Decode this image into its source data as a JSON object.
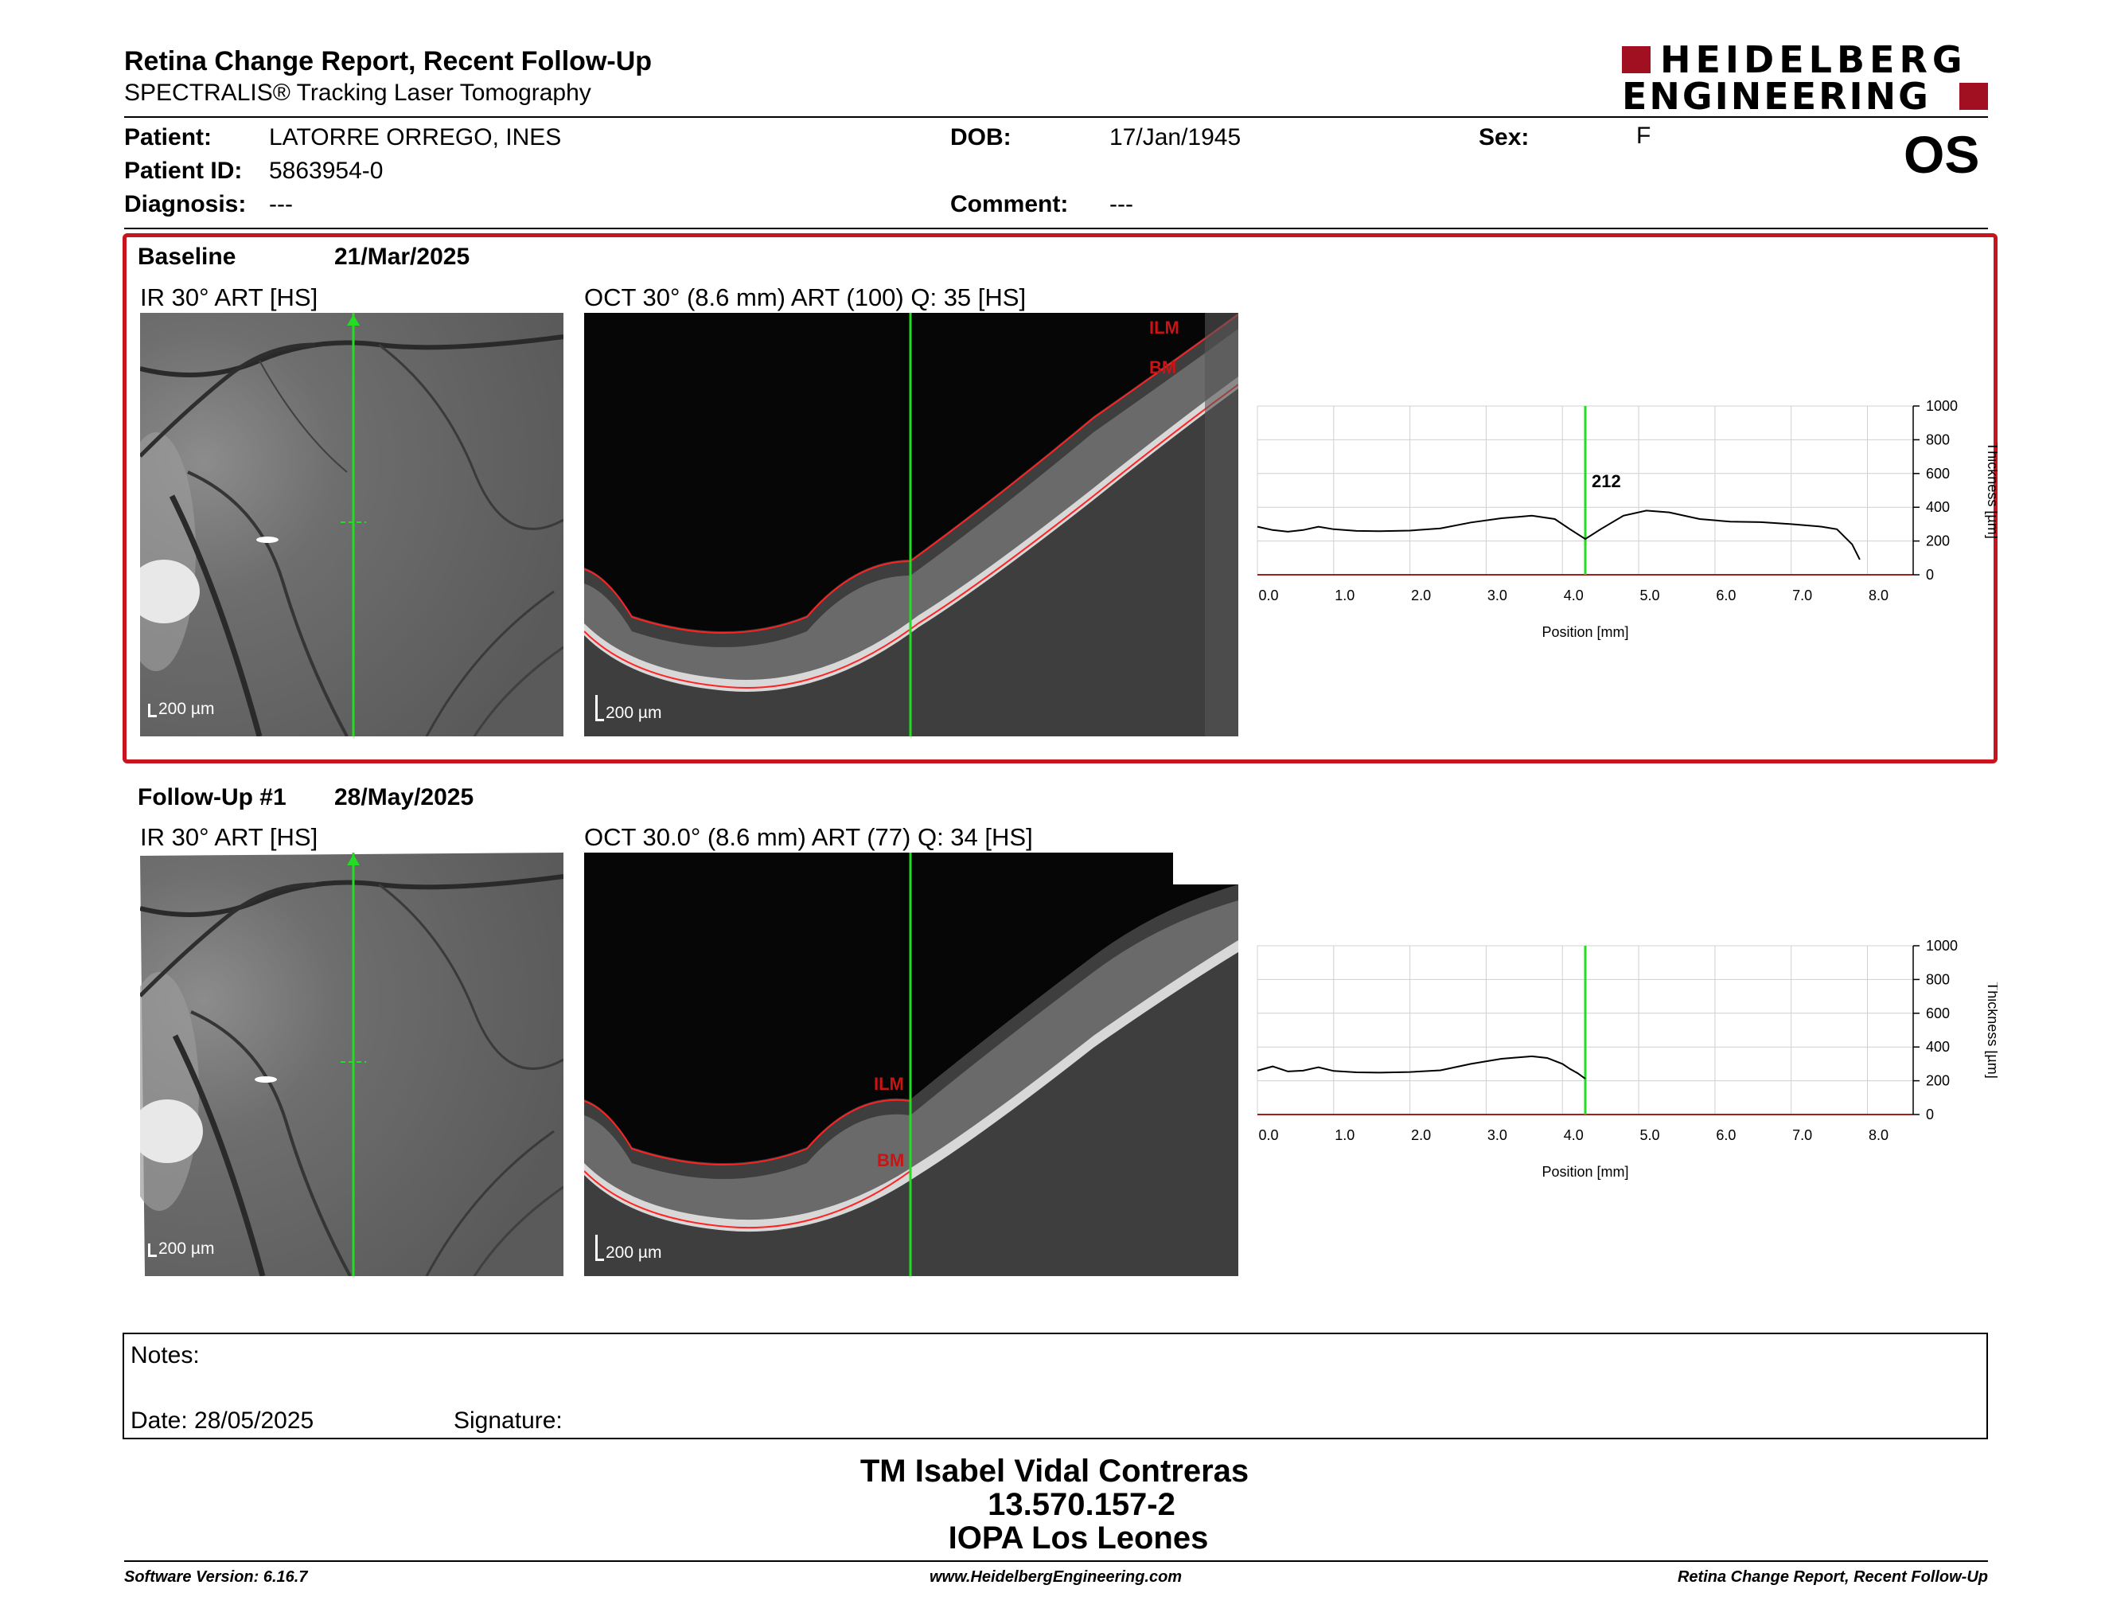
{
  "header": {
    "title": "Retina Change Report, Recent Follow-Up",
    "subtitle": "SPECTRALIS® Tracking Laser Tomography",
    "brand_line1": "HEIDELBERG",
    "brand_line2": "ENGINEERING",
    "eye": "OS"
  },
  "patient": {
    "patient_label": "Patient:",
    "patient_value": "LATORRE ORREGO, INES",
    "id_label": "Patient ID:",
    "id_value": "5863954-0",
    "diagnosis_label": "Diagnosis:",
    "diagnosis_value": "---",
    "dob_label": "DOB:",
    "dob_value": "17/Jan/1945",
    "comment_label": "Comment:",
    "comment_value": "---",
    "sex_label": "Sex:",
    "sex_value": "F"
  },
  "baseline": {
    "label": "Baseline",
    "date": "21/Mar/2025",
    "ir_label": "IR 30° ART [HS]",
    "oct_label": "OCT 30° (8.6 mm) ART (100) Q: 35 [HS]",
    "scale_ir": "200 µm",
    "scale_oct": "200 µm",
    "ilm": "ILM",
    "bm": "BM"
  },
  "followup": {
    "label": "Follow-Up #1",
    "date": "28/May/2025",
    "ir_label": "IR 30° ART [HS]",
    "oct_label": "OCT 30.0° (8.6 mm) ART (77) Q: 34 [HS]",
    "scale_ir": "200 µm",
    "scale_oct": "200 µm",
    "ilm": "ILM",
    "bm": "BM"
  },
  "chart_data": [
    {
      "type": "line",
      "xlabel": "Position [mm]",
      "ylabel": "Thickness [µm]",
      "xlim": [
        0,
        8.6
      ],
      "ylim": [
        0,
        1000
      ],
      "x_ticks": [
        "0.0",
        "1.0",
        "2.0",
        "3.0",
        "4.0",
        "5.0",
        "6.0",
        "7.0",
        "8.0"
      ],
      "y_ticks": [
        "0",
        "200",
        "400",
        "600",
        "800",
        "1000"
      ],
      "marker_x": 4.3,
      "marker_label": "212",
      "grid": true,
      "series": [
        {
          "x": [
            0.0,
            0.2,
            0.4,
            0.6,
            0.8,
            1.0,
            1.3,
            1.6,
            2.0,
            2.4,
            2.8,
            3.2,
            3.6,
            3.9,
            4.1,
            4.3,
            4.5,
            4.8,
            5.1,
            5.4,
            5.8,
            6.2,
            6.6,
            7.0,
            7.4,
            7.6,
            7.8,
            7.9
          ],
          "y": [
            285,
            265,
            255,
            265,
            285,
            270,
            260,
            258,
            262,
            275,
            310,
            335,
            350,
            330,
            270,
            212,
            270,
            350,
            380,
            370,
            330,
            315,
            312,
            300,
            285,
            270,
            180,
            90
          ]
        }
      ]
    },
    {
      "type": "line",
      "xlabel": "Position [mm]",
      "ylabel": "Thickness [µm]",
      "xlim": [
        0,
        8.6
      ],
      "ylim": [
        0,
        1000
      ],
      "x_ticks": [
        "0.0",
        "1.0",
        "2.0",
        "3.0",
        "4.0",
        "5.0",
        "6.0",
        "7.0",
        "8.0"
      ],
      "y_ticks": [
        "0",
        "200",
        "400",
        "600",
        "800",
        "1000"
      ],
      "marker_x": 4.3,
      "grid": true,
      "series": [
        {
          "x": [
            0.0,
            0.2,
            0.4,
            0.6,
            0.8,
            1.0,
            1.3,
            1.6,
            2.0,
            2.4,
            2.8,
            3.2,
            3.6,
            3.8,
            4.0,
            4.1,
            4.2,
            4.3
          ],
          "y": [
            260,
            285,
            255,
            260,
            280,
            258,
            250,
            248,
            252,
            262,
            300,
            330,
            345,
            335,
            300,
            270,
            245,
            212
          ]
        }
      ]
    }
  ],
  "notes": {
    "label": "Notes:",
    "date_label": "Date: 28/05/2025",
    "signature_label": "Signature:"
  },
  "signature_block": {
    "line1": "TM Isabel Vidal Contreras",
    "line2": "13.570.157-2",
    "line3": "IOPA Los Leones"
  },
  "footer": {
    "left": "Software Version: 6.16.7",
    "center": "www.HeidelbergEngineering.com",
    "right": "Retina Change Report, Recent Follow-Up"
  }
}
